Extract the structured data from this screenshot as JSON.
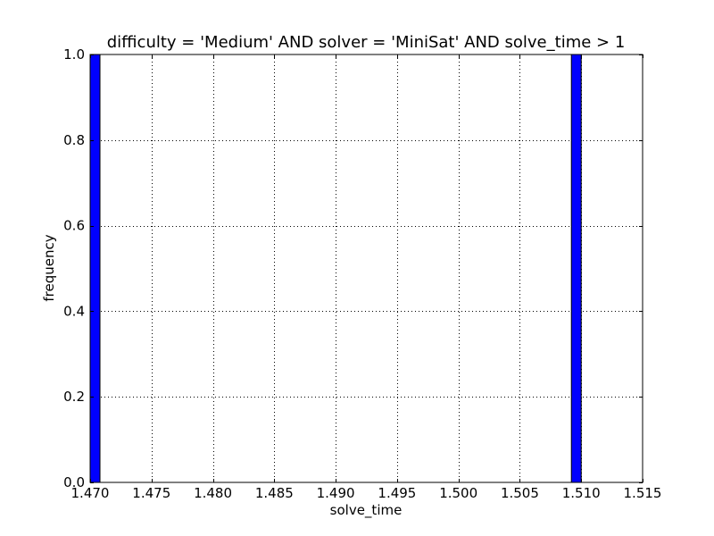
{
  "chart_data": {
    "type": "bar",
    "title": "difficulty = 'Medium' AND solver = 'MiniSat' AND solve_time > 1",
    "xlabel": "solve_time",
    "ylabel": "frequency",
    "xlim": [
      1.47,
      1.515
    ],
    "ylim": [
      0.0,
      1.0
    ],
    "x_ticks": [
      "1.470",
      "1.475",
      "1.480",
      "1.485",
      "1.490",
      "1.495",
      "1.500",
      "1.505",
      "1.510",
      "1.515"
    ],
    "y_ticks": [
      "0.0",
      "0.2",
      "0.4",
      "0.6",
      "0.8",
      "1.0"
    ],
    "grid": true,
    "bars": [
      {
        "x_start": 1.47,
        "x_end": 1.4708,
        "value": 1
      },
      {
        "x_start": 1.5092,
        "x_end": 1.51,
        "value": 1
      }
    ],
    "colors": {
      "bar_fill": "#0000ff",
      "bar_edge": "#000000",
      "grid": "#000000",
      "axes": "#000000"
    }
  }
}
